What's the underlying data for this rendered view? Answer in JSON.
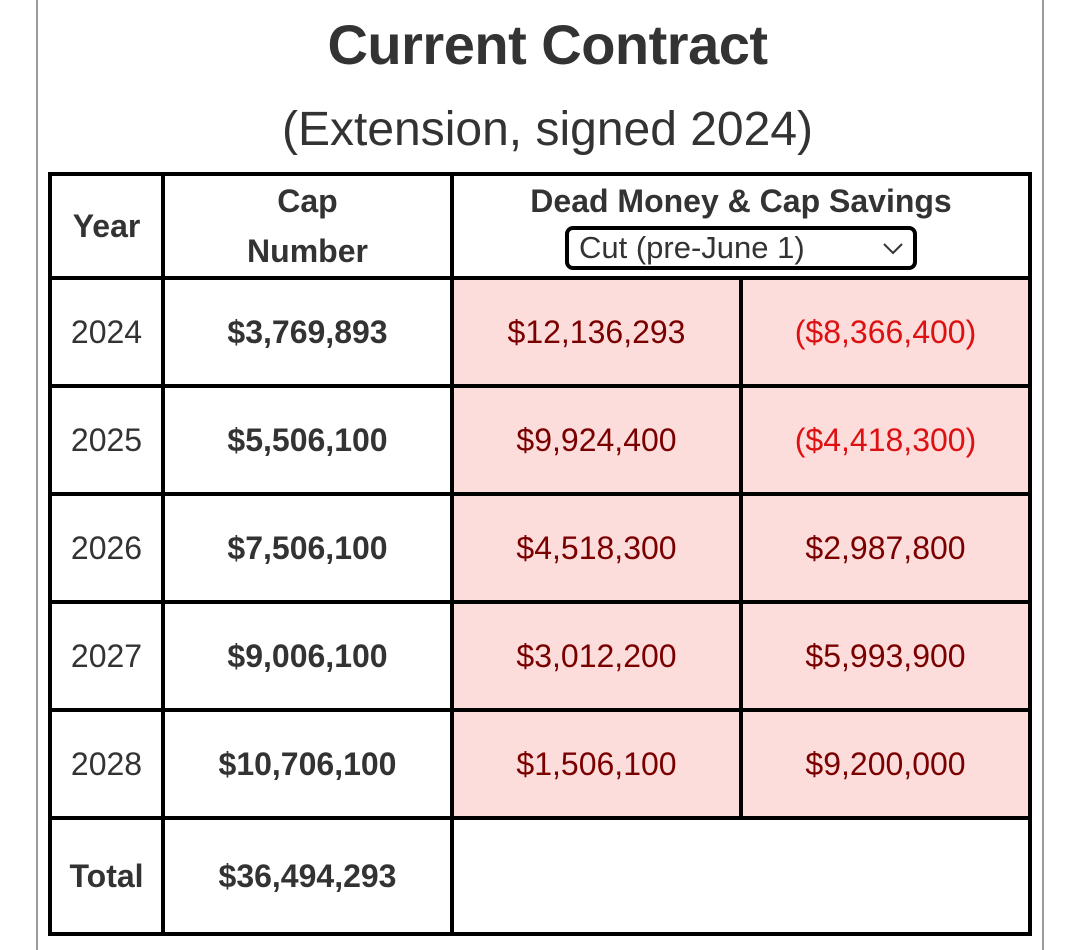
{
  "header": {
    "title": "Current Contract",
    "subtitle": "(Extension, signed 2024)"
  },
  "table": {
    "columns": {
      "year": "Year",
      "cap_line1": "Cap",
      "cap_line2": "Number",
      "dead_money": "Dead Money & Cap Savings"
    },
    "scenario_select": {
      "selected": "Cut (pre-June 1)",
      "icon": "chevron-down-icon"
    },
    "rows": [
      {
        "year": "2024",
        "cap_number": "$3,769,893",
        "dead_money": "$12,136,293",
        "cap_savings": "($8,366,400)"
      },
      {
        "year": "2025",
        "cap_number": "$5,506,100",
        "dead_money": "$9,924,400",
        "cap_savings": "($4,418,300)"
      },
      {
        "year": "2026",
        "cap_number": "$7,506,100",
        "dead_money": "$4,518,300",
        "cap_savings": "$2,987,800"
      },
      {
        "year": "2027",
        "cap_number": "$9,006,100",
        "dead_money": "$3,012,200",
        "cap_savings": "$5,993,900"
      },
      {
        "year": "2028",
        "cap_number": "$10,706,100",
        "dead_money": "$1,506,100",
        "cap_savings": "$9,200,000"
      }
    ],
    "total": {
      "label": "Total",
      "cap_number": "$36,494,293"
    }
  },
  "colors": {
    "highlight_bg": "#fddcdc",
    "highlight_border": "#8b0000",
    "positive_text": "#7a0000",
    "negative_text": "#dd1111"
  }
}
